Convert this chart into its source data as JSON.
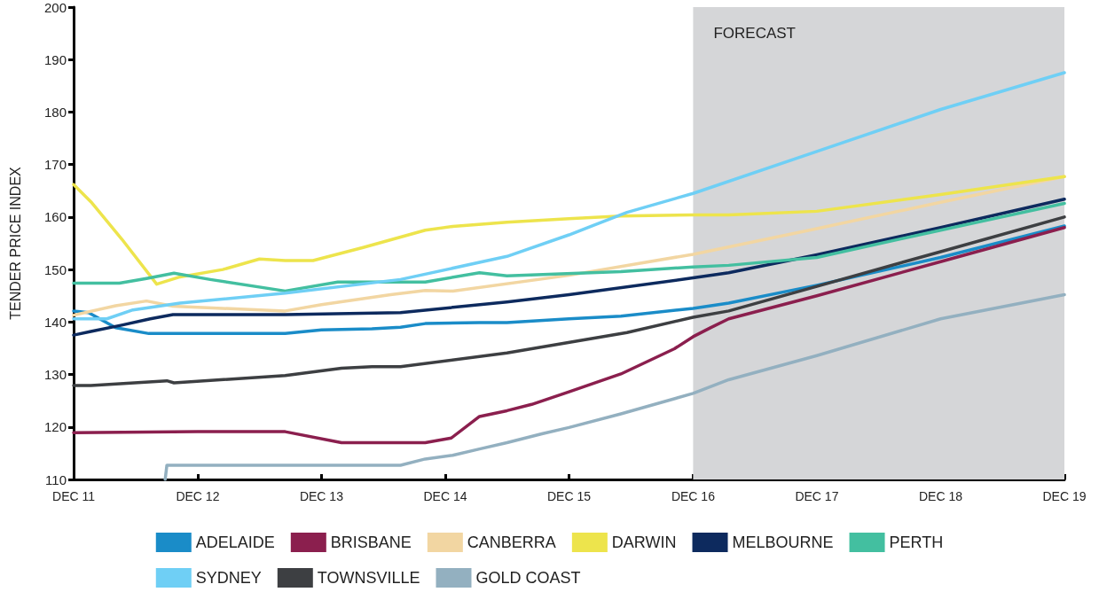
{
  "chart_data": {
    "type": "line",
    "ylabel": "TENDER PRICE INDEX",
    "xlim": [
      "2011-12-01",
      "2019-12-01"
    ],
    "xticks": [
      {
        "value": "2011-12-01",
        "label": "DEC 11"
      },
      {
        "value": "2012-12-01",
        "label": "DEC 12"
      },
      {
        "value": "2013-12-01",
        "label": "DEC 13"
      },
      {
        "value": "2014-12-01",
        "label": "DEC 14"
      },
      {
        "value": "2015-12-01",
        "label": "DEC 15"
      },
      {
        "value": "2016-12-01",
        "label": "DEC 16"
      },
      {
        "value": "2017-12-01",
        "label": "DEC 17"
      },
      {
        "value": "2018-12-01",
        "label": "DEC 18"
      },
      {
        "value": "2019-12-01",
        "label": "DEC 19"
      }
    ],
    "ylim": [
      110,
      200
    ],
    "yticks": [
      110,
      120,
      130,
      140,
      150,
      160,
      170,
      180,
      190,
      200
    ],
    "grid": false,
    "legend": "bottom",
    "marker": "none",
    "line_style": "solid",
    "bands": [
      {
        "axis": "x",
        "from": "2016-12-01",
        "to": "2019-12-01",
        "label": "FORECAST",
        "color": "#d5d6d8"
      }
    ],
    "series": [
      {
        "name": "ADELAIDE",
        "color": "#1a8cc8",
        "x": [
          "2011-12-01",
          "2012-01-14",
          "2012-04-03",
          "2012-07-10",
          "2013-08-16",
          "2013-12-01",
          "2014-04-29",
          "2014-07-22",
          "2014-10-03",
          "2015-03-12",
          "2015-06-01",
          "2015-12-01",
          "2016-05-02",
          "2016-12-01",
          "2017-03-16",
          "2017-12-01",
          "2018-12-01",
          "2019-12-01"
        ],
        "values": [
          142.1,
          141.8,
          138.9,
          137.8,
          137.8,
          138.5,
          138.7,
          139.0,
          139.7,
          139.9,
          139.9,
          140.6,
          141.1,
          142.6,
          143.6,
          147.0,
          152.3,
          158.3
        ]
      },
      {
        "name": "BRISBANE",
        "color": "#8b1f4e",
        "x": [
          "2011-12-01",
          "2012-12-01",
          "2013-08-16",
          "2014-01-29",
          "2014-10-03",
          "2014-12-19",
          "2015-03-12",
          "2015-06-01",
          "2015-08-13",
          "2015-12-01",
          "2016-05-02",
          "2016-10-07",
          "2016-12-01",
          "2017-01-21",
          "2017-03-16",
          "2017-12-01",
          "2018-12-01",
          "2019-12-01"
        ],
        "values": [
          118.9,
          119.1,
          119.1,
          117.0,
          117.0,
          117.9,
          122.0,
          123.1,
          124.3,
          126.7,
          130.1,
          134.9,
          137.2,
          138.9,
          140.6,
          145.0,
          151.5,
          158.0
        ]
      },
      {
        "name": "CANBERRA",
        "color": "#f2d6a2",
        "x": [
          "2011-12-01",
          "2012-04-03",
          "2012-07-03",
          "2012-09-19",
          "2013-08-16",
          "2013-12-01",
          "2014-06-23",
          "2014-10-03",
          "2014-12-23",
          "2015-12-01",
          "2016-12-01",
          "2017-12-01",
          "2018-12-01",
          "2019-12-01"
        ],
        "values": [
          141.3,
          143.1,
          144.0,
          143.0,
          142.1,
          143.3,
          145.2,
          146.0,
          145.9,
          148.9,
          152.9,
          157.8,
          162.8,
          167.7
        ]
      },
      {
        "name": "DARWIN",
        "color": "#ede44c",
        "x": [
          "2011-12-01",
          "2012-01-21",
          "2012-04-21",
          "2012-08-02",
          "2012-10-10",
          "2013-02-13",
          "2013-06-01",
          "2013-08-16",
          "2013-11-06",
          "2014-04-03",
          "2014-10-03",
          "2014-12-23",
          "2015-06-01",
          "2015-12-01",
          "2016-05-02",
          "2016-12-01",
          "2017-03-16",
          "2017-12-01",
          "2018-12-01",
          "2019-12-01"
        ],
        "values": [
          166.2,
          162.9,
          155.8,
          147.2,
          148.6,
          150.0,
          152.0,
          151.7,
          151.7,
          154.2,
          157.5,
          158.2,
          159.0,
          159.7,
          160.2,
          160.4,
          160.4,
          161.1,
          164.3,
          167.7
        ]
      },
      {
        "name": "MELBOURNE",
        "color": "#0d2a5e",
        "x": [
          "2011-12-01",
          "2012-01-21",
          "2012-04-21",
          "2012-07-14",
          "2012-09-19",
          "2013-08-16",
          "2014-07-22",
          "2015-06-01",
          "2015-12-01",
          "2016-12-01",
          "2017-03-16",
          "2017-12-01",
          "2018-12-01",
          "2019-12-01"
        ],
        "values": [
          137.5,
          138.2,
          139.4,
          140.6,
          141.4,
          141.4,
          141.8,
          143.8,
          145.2,
          148.4,
          149.4,
          152.8,
          158.0,
          163.4
        ]
      },
      {
        "name": "PERTH",
        "color": "#43bfa0",
        "x": [
          "2011-12-01",
          "2012-04-14",
          "2012-07-03",
          "2012-09-22",
          "2013-01-07",
          "2013-08-16",
          "2014-01-18",
          "2014-10-03",
          "2015-03-12",
          "2015-06-01",
          "2016-05-02",
          "2016-12-01",
          "2017-03-16",
          "2017-12-01",
          "2018-12-01",
          "2019-12-01"
        ],
        "values": [
          147.4,
          147.4,
          148.3,
          149.3,
          148.1,
          145.9,
          147.6,
          147.6,
          149.4,
          148.8,
          149.6,
          150.5,
          150.8,
          152.3,
          157.5,
          162.6
        ]
      },
      {
        "name": "SYDNEY",
        "color": "#6fcff5",
        "x": [
          "2011-12-01",
          "2012-03-08",
          "2012-05-24",
          "2012-10-10",
          "2013-08-16",
          "2014-07-22",
          "2015-06-01",
          "2015-12-01",
          "2016-05-20",
          "2016-12-01",
          "2017-12-01",
          "2018-12-01",
          "2019-12-01"
        ],
        "values": [
          140.6,
          140.6,
          142.3,
          143.6,
          145.5,
          148.1,
          152.5,
          156.6,
          160.9,
          164.5,
          172.5,
          180.5,
          187.5
        ]
      },
      {
        "name": "TOWNSVILLE",
        "color": "#3d3f42",
        "x": [
          "2011-12-01",
          "2012-01-21",
          "2012-09-01",
          "2012-09-22",
          "2013-08-16",
          "2014-01-29",
          "2014-04-29",
          "2014-07-22",
          "2015-06-01",
          "2016-05-20",
          "2016-12-01",
          "2017-03-16",
          "2017-12-01",
          "2018-12-01",
          "2019-12-01"
        ],
        "values": [
          127.9,
          127.9,
          128.8,
          128.4,
          129.8,
          131.2,
          131.5,
          131.5,
          134.1,
          138.0,
          140.9,
          142.1,
          146.8,
          153.4,
          160.0
        ]
      },
      {
        "name": "GOLD COAST",
        "color": "#93b0c0",
        "x": [
          "2012-08-27",
          "2012-09-01",
          "2014-07-22",
          "2014-10-03",
          "2014-12-23",
          "2015-03-12",
          "2015-06-01",
          "2015-09-12",
          "2015-12-01",
          "2016-05-02",
          "2016-12-01",
          "2017-03-16",
          "2017-12-01",
          "2018-12-01",
          "2019-12-01"
        ],
        "values": [
          110,
          112.7,
          112.7,
          113.9,
          114.6,
          115.8,
          117.0,
          118.7,
          119.9,
          122.5,
          126.4,
          129.0,
          133.6,
          140.6,
          145.2
        ]
      }
    ]
  }
}
